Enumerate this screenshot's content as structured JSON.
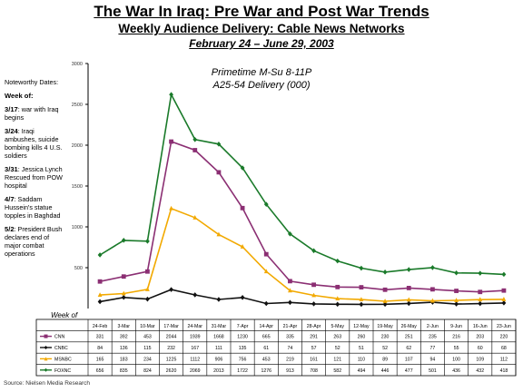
{
  "header": {
    "title": "The War In Iraq: Pre War and Post War Trends",
    "subtitle": "Weekly Audience Delivery: Cable News Networks",
    "dates": "February 24 – June 29, 2003"
  },
  "notes": {
    "heading": "Noteworthy Dates:",
    "week_label": "Week of:",
    "events": [
      {
        "date": "3/17",
        "text": ": war with Iraq begins"
      },
      {
        "date": "3/24",
        "text": ": Iraqi ambushes, suicide bombing kills 4 U.S. soldiers"
      },
      {
        "date": "3/31",
        "text": ": Jessica Lynch  Rescued from POW hospital"
      },
      {
        "date": "4/7",
        "text": ": Saddam Hussein's statue topples in Baghdad"
      },
      {
        "date": "5/2",
        "text": ": President Bush declares end of major combat operations"
      }
    ]
  },
  "source": "Source: Nielsen Media Research",
  "chart_data": {
    "type": "line",
    "annotation_line1": "Primetime M-Su 8-11P",
    "annotation_line2": "A25-54 Delivery (000)",
    "xlabel": "Week of",
    "ylim": [
      0,
      3000
    ],
    "yticks": [
      500,
      1000,
      1500,
      2000,
      2500,
      3000
    ],
    "grid": false,
    "legend": "table-below",
    "categories": [
      "24-Feb",
      "3-Mar",
      "10-Mar",
      "17-Mar",
      "24-Mar",
      "31-Mar",
      "7-Apr",
      "14-Apr",
      "21-Apr",
      "28-Apr",
      "5-May",
      "12-May",
      "19-May",
      "26-May",
      "2-Jun",
      "9-Jun",
      "16-Jun",
      "23-Jun"
    ],
    "series": [
      {
        "name": "CNN",
        "color": "#8b2f73",
        "marker": "square",
        "values": [
          331,
          392,
          453,
          2044,
          1939,
          1668,
          1230,
          665,
          335,
          291,
          263,
          260,
          230,
          251,
          235,
          216,
          203,
          220
        ],
        "labels": [
          "331",
          "392",
          "453",
          "2044",
          "1939",
          "1668",
          "1230",
          "665",
          "335",
          "291",
          "263",
          "260",
          "230",
          "251",
          "235",
          "216",
          "203",
          "220"
        ]
      },
      {
        "name": "CNBC",
        "color": "#111111",
        "marker": "diamond",
        "values": [
          84,
          136,
          115,
          232,
          167,
          111,
          135,
          61,
          74,
          57,
          52,
          51,
          52,
          62,
          77,
          55,
          60,
          68
        ],
        "labels": [
          "84",
          "136",
          "115",
          "232",
          "167",
          "111",
          "135",
          "61",
          "74",
          "57",
          "52",
          "51",
          "52",
          "62",
          "77",
          "55",
          "60",
          "68"
        ]
      },
      {
        "name": "MSNBC",
        "color": "#f2a900",
        "marker": "triangle",
        "values": [
          165,
          183,
          234,
          1225,
          1112,
          906,
          756,
          453,
          219,
          161,
          121,
          110,
          89,
          107,
          94,
          100,
          109,
          112
        ],
        "labels": [
          "165",
          "183",
          "234",
          "1225",
          "1112",
          "906",
          "756",
          "453",
          "219",
          "161",
          "121",
          "110",
          "89",
          "107",
          "94",
          "100",
          "109",
          "112"
        ]
      },
      {
        "name": "FOXNC",
        "color": "#1a7a2a",
        "marker": "diamond",
        "values": [
          656,
          835,
          824,
          2620,
          2069,
          2013,
          1722,
          1276,
          913,
          708,
          582,
          494,
          446,
          477,
          501,
          436,
          432,
          418
        ],
        "labels": [
          "656",
          "835",
          "824",
          "2620",
          "2069",
          "2013",
          "1722",
          "1276",
          "913",
          "708",
          "582",
          "494",
          "446",
          "477",
          "501",
          "436",
          "432",
          "418"
        ]
      }
    ]
  }
}
